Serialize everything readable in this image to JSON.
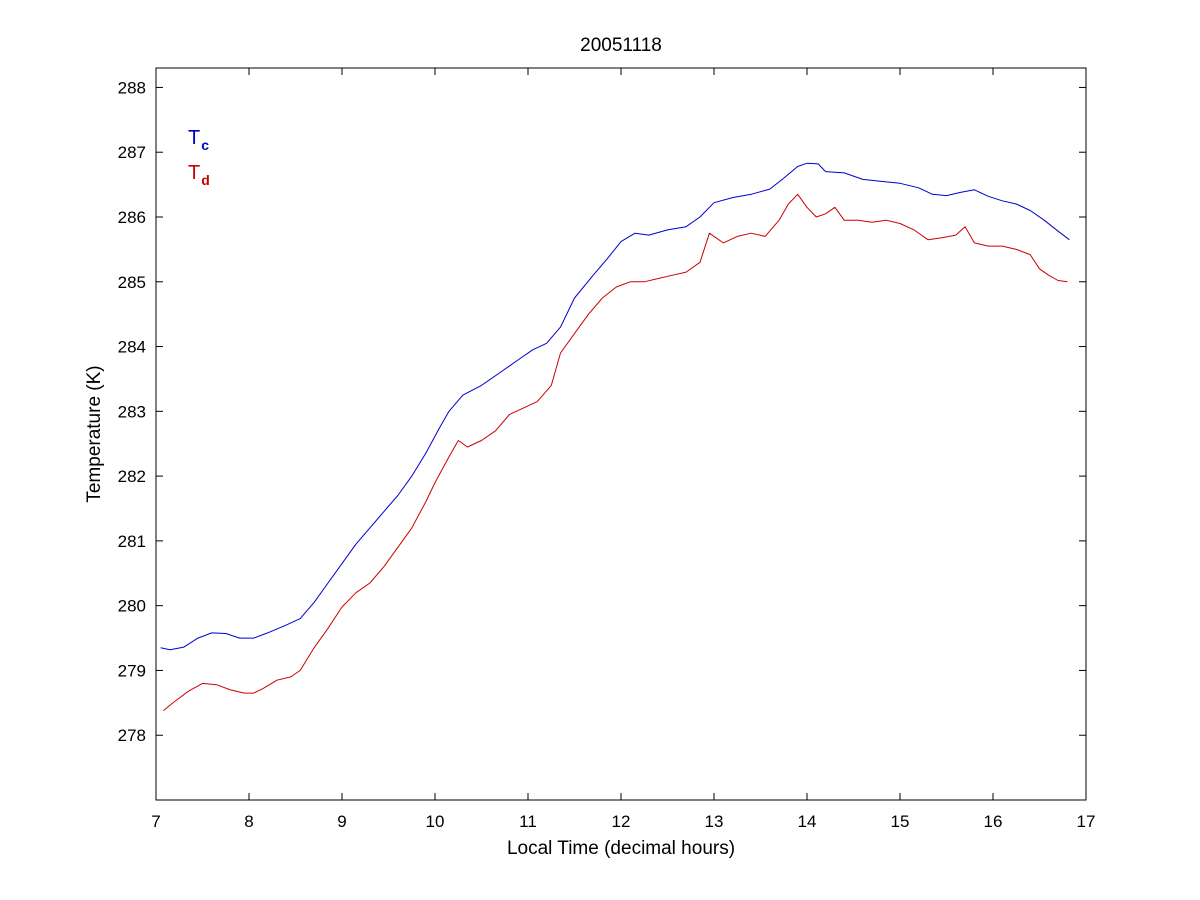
{
  "chart_data": {
    "type": "line",
    "title": "20051118",
    "xlabel": "Local Time (decimal hours)",
    "ylabel": "Temperature (K)",
    "xlim": [
      7,
      17
    ],
    "ylim": [
      277,
      288.3
    ],
    "xticks": [
      7,
      8,
      9,
      10,
      11,
      12,
      13,
      14,
      15,
      16,
      17
    ],
    "yticks": [
      278,
      279,
      280,
      281,
      282,
      283,
      284,
      285,
      286,
      287,
      288
    ],
    "grid": false,
    "legend_position": "top-left",
    "series": [
      {
        "name": "T",
        "subscript": "c",
        "color": "#0000cc",
        "points": [
          [
            7.05,
            279.35
          ],
          [
            7.15,
            279.32
          ],
          [
            7.3,
            279.36
          ],
          [
            7.45,
            279.5
          ],
          [
            7.6,
            279.58
          ],
          [
            7.75,
            279.57
          ],
          [
            7.9,
            279.5
          ],
          [
            8.05,
            279.5
          ],
          [
            8.2,
            279.58
          ],
          [
            8.4,
            279.7
          ],
          [
            8.55,
            279.8
          ],
          [
            8.7,
            280.05
          ],
          [
            8.85,
            280.35
          ],
          [
            9.0,
            280.65
          ],
          [
            9.15,
            280.95
          ],
          [
            9.3,
            281.2
          ],
          [
            9.45,
            281.45
          ],
          [
            9.6,
            281.7
          ],
          [
            9.75,
            282.0
          ],
          [
            9.9,
            282.35
          ],
          [
            10.05,
            282.75
          ],
          [
            10.15,
            283.0
          ],
          [
            10.3,
            283.25
          ],
          [
            10.5,
            283.4
          ],
          [
            10.7,
            283.6
          ],
          [
            10.9,
            283.8
          ],
          [
            11.05,
            283.95
          ],
          [
            11.2,
            284.05
          ],
          [
            11.35,
            284.3
          ],
          [
            11.5,
            284.75
          ],
          [
            11.7,
            285.1
          ],
          [
            11.85,
            285.35
          ],
          [
            12.0,
            285.62
          ],
          [
            12.15,
            285.75
          ],
          [
            12.3,
            285.72
          ],
          [
            12.5,
            285.8
          ],
          [
            12.7,
            285.85
          ],
          [
            12.85,
            286.0
          ],
          [
            13.0,
            286.22
          ],
          [
            13.2,
            286.3
          ],
          [
            13.4,
            286.35
          ],
          [
            13.6,
            286.43
          ],
          [
            13.75,
            286.6
          ],
          [
            13.9,
            286.78
          ],
          [
            14.0,
            286.83
          ],
          [
            14.12,
            286.82
          ],
          [
            14.2,
            286.7
          ],
          [
            14.4,
            286.68
          ],
          [
            14.6,
            286.58
          ],
          [
            14.8,
            286.55
          ],
          [
            15.0,
            286.52
          ],
          [
            15.2,
            286.45
          ],
          [
            15.35,
            286.35
          ],
          [
            15.5,
            286.33
          ],
          [
            15.65,
            286.38
          ],
          [
            15.8,
            286.42
          ],
          [
            15.95,
            286.32
          ],
          [
            16.1,
            286.25
          ],
          [
            16.25,
            286.2
          ],
          [
            16.4,
            286.1
          ],
          [
            16.55,
            285.95
          ],
          [
            16.7,
            285.78
          ],
          [
            16.82,
            285.65
          ]
        ]
      },
      {
        "name": "T",
        "subscript": "d",
        "color": "#cc0000",
        "points": [
          [
            7.08,
            278.38
          ],
          [
            7.2,
            278.52
          ],
          [
            7.35,
            278.68
          ],
          [
            7.5,
            278.8
          ],
          [
            7.65,
            278.78
          ],
          [
            7.8,
            278.7
          ],
          [
            7.95,
            278.65
          ],
          [
            8.05,
            278.65
          ],
          [
            8.15,
            278.72
          ],
          [
            8.3,
            278.85
          ],
          [
            8.45,
            278.9
          ],
          [
            8.55,
            279.0
          ],
          [
            8.7,
            279.35
          ],
          [
            8.85,
            279.65
          ],
          [
            9.0,
            279.98
          ],
          [
            9.15,
            280.2
          ],
          [
            9.3,
            280.35
          ],
          [
            9.45,
            280.6
          ],
          [
            9.6,
            280.9
          ],
          [
            9.75,
            281.2
          ],
          [
            9.9,
            281.6
          ],
          [
            10.0,
            281.9
          ],
          [
            10.15,
            282.3
          ],
          [
            10.25,
            282.55
          ],
          [
            10.35,
            282.45
          ],
          [
            10.5,
            282.55
          ],
          [
            10.65,
            282.7
          ],
          [
            10.8,
            282.95
          ],
          [
            10.95,
            283.05
          ],
          [
            11.1,
            283.15
          ],
          [
            11.25,
            283.4
          ],
          [
            11.35,
            283.9
          ],
          [
            11.5,
            284.2
          ],
          [
            11.65,
            284.5
          ],
          [
            11.8,
            284.75
          ],
          [
            11.95,
            284.92
          ],
          [
            12.1,
            285.0
          ],
          [
            12.25,
            285.0
          ],
          [
            12.4,
            285.05
          ],
          [
            12.55,
            285.1
          ],
          [
            12.7,
            285.15
          ],
          [
            12.85,
            285.3
          ],
          [
            12.95,
            285.75
          ],
          [
            13.1,
            285.6
          ],
          [
            13.25,
            285.7
          ],
          [
            13.4,
            285.75
          ],
          [
            13.55,
            285.7
          ],
          [
            13.7,
            285.95
          ],
          [
            13.8,
            286.2
          ],
          [
            13.9,
            286.35
          ],
          [
            14.0,
            286.15
          ],
          [
            14.1,
            286.0
          ],
          [
            14.2,
            286.05
          ],
          [
            14.3,
            286.15
          ],
          [
            14.4,
            285.95
          ],
          [
            14.55,
            285.95
          ],
          [
            14.7,
            285.92
          ],
          [
            14.85,
            285.95
          ],
          [
            15.0,
            285.9
          ],
          [
            15.15,
            285.8
          ],
          [
            15.3,
            285.65
          ],
          [
            15.45,
            285.68
          ],
          [
            15.6,
            285.72
          ],
          [
            15.7,
            285.85
          ],
          [
            15.8,
            285.6
          ],
          [
            15.95,
            285.55
          ],
          [
            16.1,
            285.55
          ],
          [
            16.25,
            285.5
          ],
          [
            16.4,
            285.42
          ],
          [
            16.5,
            285.2
          ],
          [
            16.6,
            285.1
          ],
          [
            16.7,
            285.02
          ],
          [
            16.8,
            285.0
          ]
        ]
      }
    ]
  }
}
